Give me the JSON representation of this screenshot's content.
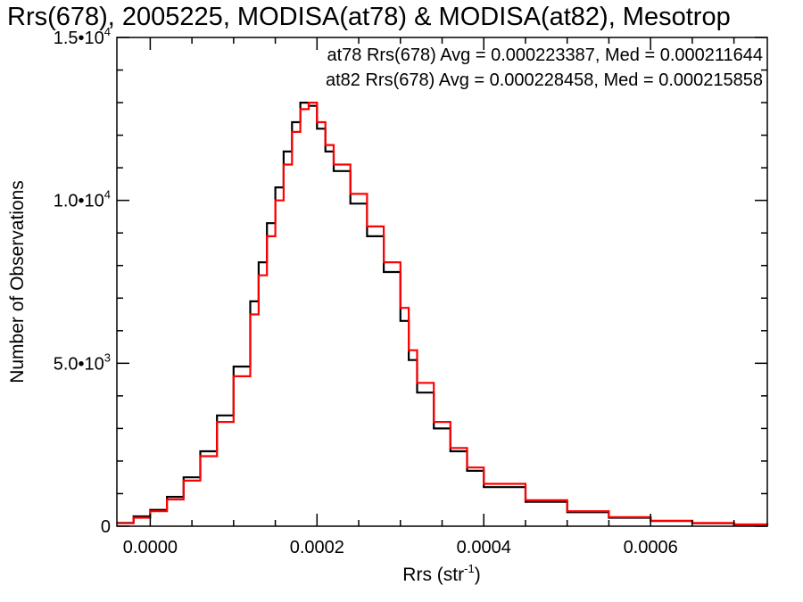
{
  "chart_data": {
    "type": "line",
    "title": "Rrs(678), 2005225, MODISA(at78) & MODISA(at82), Mesotrop",
    "xlabel": "Rrs (str",
    "xlabel_sup": "-1",
    "xlabel_close": ")",
    "ylabel": "Number of Observations",
    "xlim": [
      -4e-05,
      0.00074
    ],
    "ylim": [
      0,
      15000
    ],
    "grid": false,
    "step": true,
    "x_ticks": [
      {
        "value": 0.0,
        "label": "0.0000"
      },
      {
        "value": 0.0002,
        "label": "0.0002"
      },
      {
        "value": 0.0004,
        "label": "0.0004"
      },
      {
        "value": 0.0006,
        "label": "0.0006"
      }
    ],
    "y_ticks": [
      {
        "value": 0,
        "label": "0",
        "sup": ""
      },
      {
        "value": 5000,
        "label": "5.0•10",
        "sup": "3"
      },
      {
        "value": 10000,
        "label": "1.0•10",
        "sup": "4"
      },
      {
        "value": 15000,
        "label": "1.5•10",
        "sup": "4"
      }
    ],
    "legend": [
      {
        "text": "at78 Rrs(678) Avg = 0.000223387, Med = 0.000211644",
        "color": "#000000"
      },
      {
        "text": "at82 Rrs(678) Avg = 0.000228458, Med = 0.000215858",
        "color": "#ff0000"
      }
    ],
    "series": [
      {
        "name": "at78",
        "color": "#000000",
        "x": [
          -4e-05,
          -2e-05,
          0.0,
          2e-05,
          4e-05,
          6e-05,
          8e-05,
          0.0001,
          0.00012,
          0.00013,
          0.00014,
          0.00015,
          0.00016,
          0.00017,
          0.00018,
          0.00019,
          0.0002,
          0.00021,
          0.00022,
          0.00024,
          0.00026,
          0.00028,
          0.0003,
          0.00031,
          0.00032,
          0.00034,
          0.00036,
          0.00038,
          0.0004,
          0.00045,
          0.0005,
          0.00055,
          0.0006,
          0.00065,
          0.0007,
          0.00074
        ],
        "y": [
          100,
          300,
          500,
          900,
          1500,
          2300,
          3400,
          4900,
          6900,
          8100,
          9300,
          10400,
          11500,
          12400,
          13000,
          12900,
          12200,
          11500,
          10900,
          9900,
          8900,
          7800,
          6300,
          5100,
          4100,
          3000,
          2300,
          1700,
          1200,
          750,
          430,
          260,
          160,
          90,
          50,
          30
        ]
      },
      {
        "name": "at82",
        "color": "#ff0000",
        "x": [
          -4e-05,
          -2e-05,
          0.0,
          2e-05,
          4e-05,
          6e-05,
          8e-05,
          0.0001,
          0.00012,
          0.00013,
          0.00014,
          0.00015,
          0.00016,
          0.00017,
          0.00018,
          0.00019,
          0.0002,
          0.00021,
          0.00022,
          0.00024,
          0.00026,
          0.00028,
          0.0003,
          0.00031,
          0.00032,
          0.00034,
          0.00036,
          0.00038,
          0.0004,
          0.00045,
          0.0005,
          0.00055,
          0.0006,
          0.00065,
          0.0007,
          0.00074
        ],
        "y": [
          90,
          260,
          460,
          820,
          1400,
          2150,
          3200,
          4600,
          6500,
          7700,
          8900,
          10000,
          11100,
          12100,
          12800,
          13000,
          12400,
          11700,
          11100,
          10200,
          9200,
          8100,
          6700,
          5400,
          4400,
          3200,
          2400,
          1800,
          1300,
          800,
          460,
          280,
          170,
          100,
          55,
          30
        ]
      }
    ]
  }
}
